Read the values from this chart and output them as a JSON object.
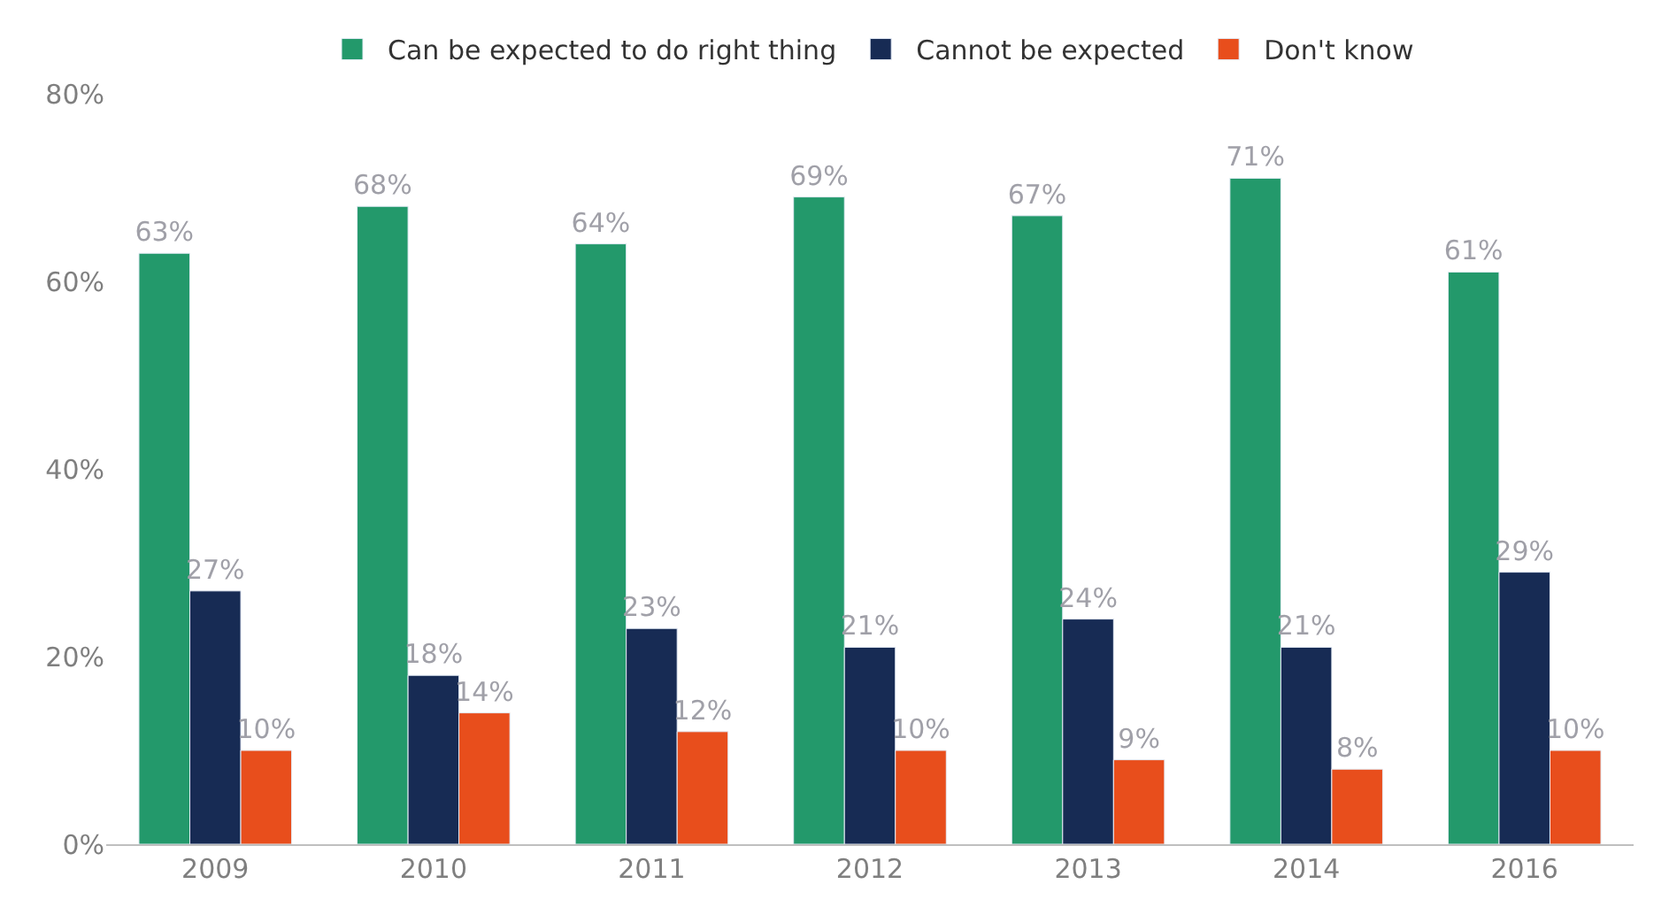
{
  "chart_data": {
    "type": "bar",
    "categories": [
      "2009",
      "2010",
      "2011",
      "2012",
      "2013",
      "2014",
      "2016"
    ],
    "series": [
      {
        "name": "Can be expected to do right thing",
        "color": "#23996b",
        "values": [
          63,
          68,
          64,
          69,
          67,
          71,
          61
        ],
        "value_labels": [
          "63%",
          "68%",
          "64%",
          "69%",
          "67%",
          "71%",
          "61%"
        ]
      },
      {
        "name": "Cannot be expected",
        "color": "#172b54",
        "values": [
          27,
          18,
          23,
          21,
          24,
          21,
          29
        ],
        "value_labels": [
          "27%",
          "18%",
          "23%",
          "21%",
          "24%",
          "21%",
          "29%"
        ]
      },
      {
        "name": "Don't know",
        "color": "#e84e1c",
        "values": [
          10,
          14,
          12,
          10,
          9,
          8,
          10
        ],
        "value_labels": [
          "10%",
          "14%",
          "12%",
          "10%",
          "9%",
          "8%",
          "10%"
        ]
      }
    ],
    "ylim": [
      0,
      80
    ],
    "yticks": [
      {
        "value": 0,
        "label": "0%"
      },
      {
        "value": 20,
        "label": "20%"
      },
      {
        "value": 40,
        "label": "40%"
      },
      {
        "value": 60,
        "label": "60%"
      },
      {
        "value": 80,
        "label": "80%"
      }
    ],
    "legend": "top"
  }
}
